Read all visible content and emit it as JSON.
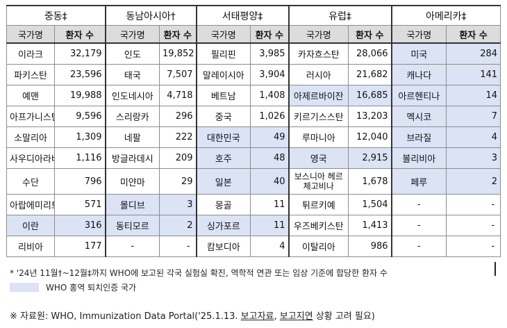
{
  "regions": [
    "중동‡",
    "동남아시아†",
    "서태평양‡",
    "유럽‡",
    "아메리카‡"
  ],
  "column_headers": {
    "name": "국가명",
    "count": "환자 수"
  },
  "middle_east": [
    {
      "name": "이라크",
      "count": "32,179"
    },
    {
      "name": "파키스탄",
      "count": "23,596"
    },
    {
      "name": "예맨",
      "count": "19,988"
    },
    {
      "name": "아프가니스탄",
      "count": "9,596"
    },
    {
      "name": "소말리아",
      "count": "1,309"
    },
    {
      "name": "사우디아라비아",
      "count": "1,116"
    },
    {
      "name": "수단",
      "count": "796"
    },
    {
      "name": "아랍에미리트",
      "count": "571"
    },
    {
      "name": "이란",
      "count": "316",
      "verified": true
    },
    {
      "name": "리비아",
      "count": "177"
    }
  ],
  "southeast_asia": [
    {
      "name": "인도",
      "count": "19,852"
    },
    {
      "name": "태국",
      "count": "7,507"
    },
    {
      "name": "인도네시아",
      "count": "4,718"
    },
    {
      "name": "스리랑카",
      "count": "296"
    },
    {
      "name": "네팔",
      "count": "222"
    },
    {
      "name": "방글라데시",
      "count": "209"
    },
    {
      "name": "미얀마",
      "count": "29"
    },
    {
      "name": "몰디브",
      "count": "3",
      "verified": true
    },
    {
      "name": "동티모르",
      "count": "2",
      "verified": true
    },
    {
      "name": "-",
      "count": "-"
    }
  ],
  "western_pacific": [
    {
      "name": "필리핀",
      "count": "3,985"
    },
    {
      "name": "말레이시아",
      "count": "3,904"
    },
    {
      "name": "베트남",
      "count": "1,408"
    },
    {
      "name": "중국",
      "count": "1,026"
    },
    {
      "name": "대한민국",
      "count": "49",
      "verified": true
    },
    {
      "name": "호주",
      "count": "48",
      "verified": true
    },
    {
      "name": "일본",
      "count": "40",
      "verified": true
    },
    {
      "name": "몽골",
      "count": "11"
    },
    {
      "name": "싱가포르",
      "count": "11",
      "verified": true
    },
    {
      "name": "캄보디아",
      "count": "4"
    }
  ],
  "europe": [
    {
      "name": "카자흐스탄",
      "count": "28,066"
    },
    {
      "name": "러시아",
      "count": "21,682"
    },
    {
      "name": "아제르바이잔",
      "count": "16,685",
      "verified": true
    },
    {
      "name": "키르기스스탄",
      "count": "13,203"
    },
    {
      "name": "루마니아",
      "count": "12,040"
    },
    {
      "name": "영국",
      "count": "2,915",
      "verified": true
    },
    {
      "name": "보스니아 헤르체고비나",
      "count": "1,678"
    },
    {
      "name": "튀르키예",
      "count": "1,504"
    },
    {
      "name": "우즈베키스탄",
      "count": "1,413"
    },
    {
      "name": "이탈리아",
      "count": "986"
    }
  ],
  "americas": [
    {
      "name": "미국",
      "count": "284",
      "verified": true
    },
    {
      "name": "캐나다",
      "count": "141",
      "verified": true
    },
    {
      "name": "아르헨티나",
      "count": "14",
      "verified": true
    },
    {
      "name": "멕시코",
      "count": "7",
      "verified": true
    },
    {
      "name": "브라질",
      "count": "4",
      "verified": true
    },
    {
      "name": "볼리비아",
      "count": "3",
      "verified": true
    },
    {
      "name": "페루",
      "count": "2",
      "verified": true
    },
    {
      "name": "-",
      "count": "-"
    },
    {
      "name": "-",
      "count": "-"
    },
    {
      "name": "-",
      "count": "-"
    }
  ],
  "footnotes": {
    "note1": "* '24년 11월†~12월‡까지 WHO에 보고된 각국 실험실 확진, 역학적 연관 또는 임상 기준에 합당한 환자 수",
    "legend": "WHO 홍역 퇴치인증 국가",
    "source_prefix": "※ 자료원: WHO, Immunization Data Portal('25.1.13. ",
    "source_underlined_1": "보고자료",
    "source_middle": ", ",
    "source_underlined_2": "보고지연",
    "source_suffix": " 상황 고려 필요)"
  }
}
